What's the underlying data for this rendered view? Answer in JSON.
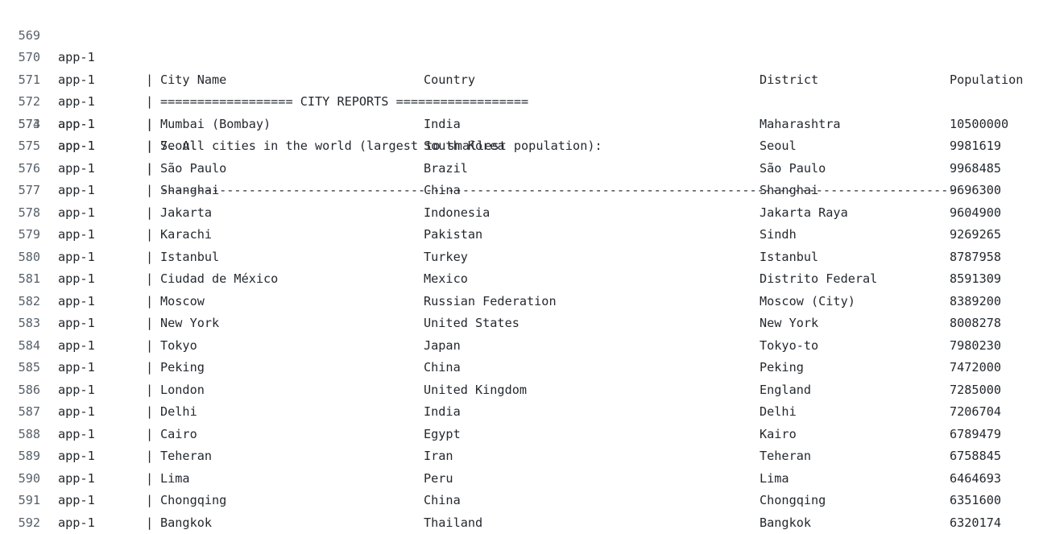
{
  "log": {
    "service": "app-1",
    "separator": "|",
    "preamble": [
      {
        "line": "569",
        "text": "================== CITY REPORTS =================="
      },
      {
        "line": "570",
        "text": ""
      },
      {
        "line": "571",
        "text": "7. All cities in the world (largest to smallest population):"
      }
    ],
    "table_header": {
      "line": "572",
      "columns": [
        "City Name",
        "Country",
        "District",
        "Population"
      ]
    },
    "divider": {
      "line": "573",
      "text": "------------------------------------------------------------------------------------------------------------"
    },
    "rows": [
      {
        "line": "574",
        "cells": [
          "Mumbai (Bombay)",
          "India",
          "Maharashtra",
          "10500000"
        ]
      },
      {
        "line": "575",
        "cells": [
          "Seoul",
          "South Korea",
          "Seoul",
          "9981619"
        ]
      },
      {
        "line": "576",
        "cells": [
          "São Paulo",
          "Brazil",
          "São Paulo",
          "9968485"
        ]
      },
      {
        "line": "577",
        "cells": [
          "Shanghai",
          "China",
          "Shanghai",
          "9696300"
        ]
      },
      {
        "line": "578",
        "cells": [
          "Jakarta",
          "Indonesia",
          "Jakarta Raya",
          "9604900"
        ]
      },
      {
        "line": "579",
        "cells": [
          "Karachi",
          "Pakistan",
          "Sindh",
          "9269265"
        ]
      },
      {
        "line": "580",
        "cells": [
          "Istanbul",
          "Turkey",
          "Istanbul",
          "8787958"
        ]
      },
      {
        "line": "581",
        "cells": [
          "Ciudad de México",
          "Mexico",
          "Distrito Federal",
          "8591309"
        ]
      },
      {
        "line": "582",
        "cells": [
          "Moscow",
          "Russian Federation",
          "Moscow (City)",
          "8389200"
        ]
      },
      {
        "line": "583",
        "cells": [
          "New York",
          "United States",
          "New York",
          "8008278"
        ]
      },
      {
        "line": "584",
        "cells": [
          "Tokyo",
          "Japan",
          "Tokyo-to",
          "7980230"
        ]
      },
      {
        "line": "585",
        "cells": [
          "Peking",
          "China",
          "Peking",
          "7472000"
        ]
      },
      {
        "line": "586",
        "cells": [
          "London",
          "United Kingdom",
          "England",
          "7285000"
        ]
      },
      {
        "line": "587",
        "cells": [
          "Delhi",
          "India",
          "Delhi",
          "7206704"
        ]
      },
      {
        "line": "588",
        "cells": [
          "Cairo",
          "Egypt",
          "Kairo",
          "6789479"
        ]
      },
      {
        "line": "589",
        "cells": [
          "Teheran",
          "Iran",
          "Teheran",
          "6758845"
        ]
      },
      {
        "line": "590",
        "cells": [
          "Lima",
          "Peru",
          "Lima",
          "6464693"
        ]
      },
      {
        "line": "591",
        "cells": [
          "Chongqing",
          "China",
          "Chongqing",
          "6351600"
        ]
      },
      {
        "line": "592",
        "cells": [
          "Bangkok",
          "Thailand",
          "Bangkok",
          "6320174"
        ]
      }
    ]
  }
}
